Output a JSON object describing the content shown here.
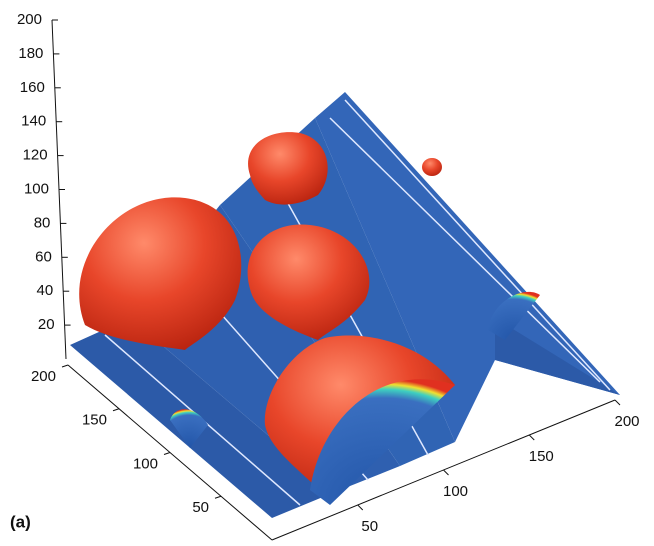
{
  "chart_data": {
    "type": "surface3d",
    "label": "(a)",
    "zlim": [
      0,
      200
    ],
    "zticks": [
      20,
      40,
      60,
      80,
      100,
      120,
      140,
      160,
      180,
      200
    ],
    "ylim": [
      0,
      200
    ],
    "yticks": [
      50,
      100,
      150,
      200
    ],
    "xlim": [
      0,
      200
    ],
    "xticks": [
      50,
      100,
      150,
      200
    ]
  }
}
